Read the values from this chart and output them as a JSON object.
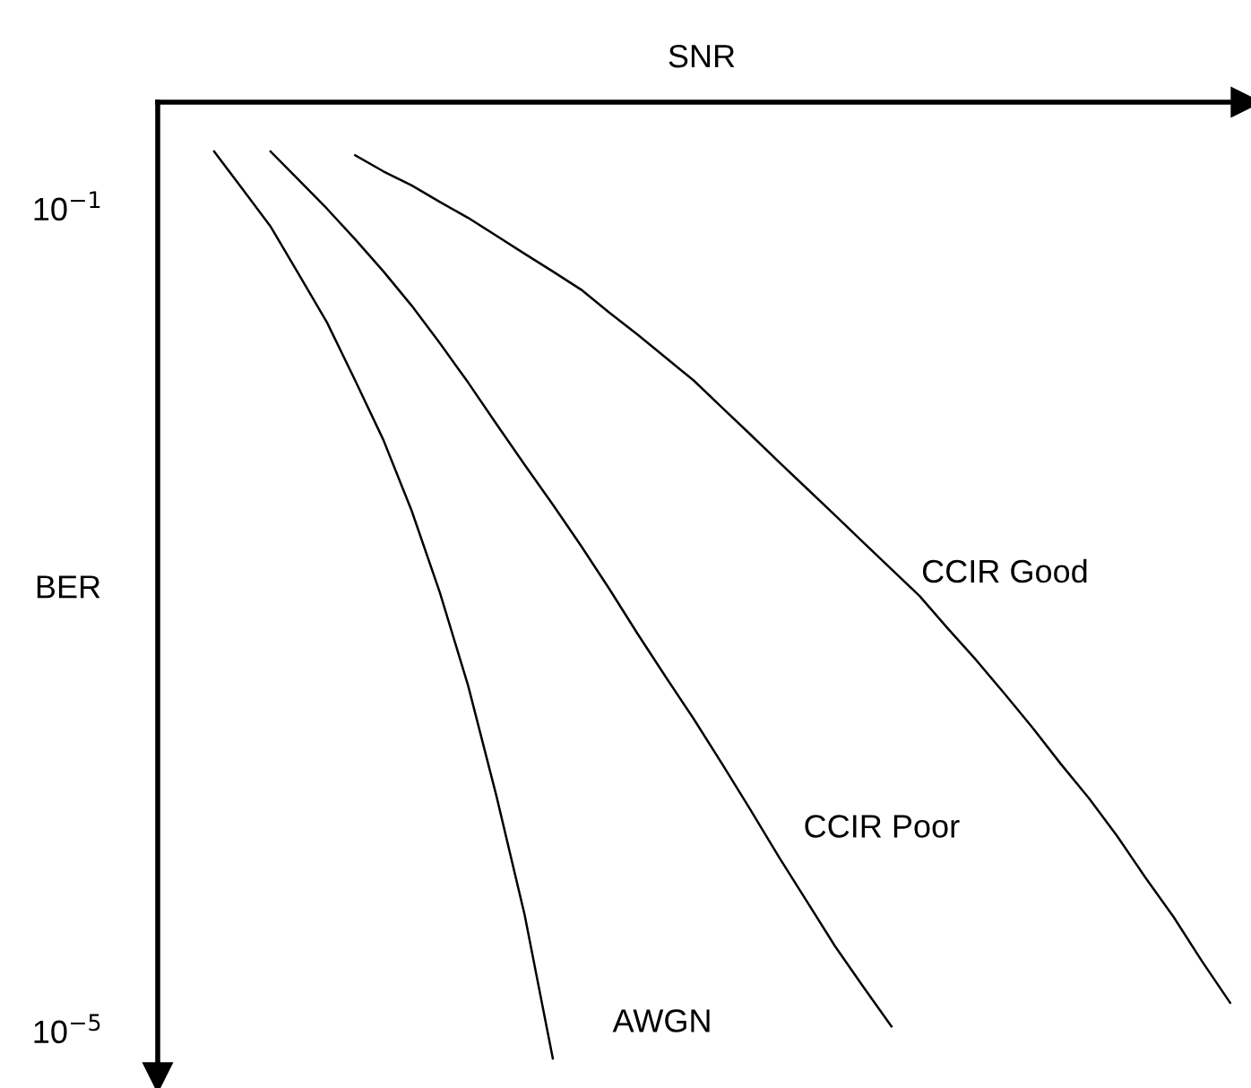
{
  "chart_data": {
    "type": "line",
    "xlabel": "SNR",
    "ylabel": "BER",
    "log": "y",
    "ylim": [
      6e-06,
      0.33
    ],
    "yticks": [
      {
        "value": 0.1,
        "label": "10$^{−1}$"
      },
      {
        "value": 1e-05,
        "label": "10$^{−5}$"
      }
    ],
    "tick_labels": "y",
    "grid": false,
    "legend": false,
    "marker": "none",
    "line_style": "solid",
    "categories": [
      null,
      null,
      null,
      null,
      null,
      null,
      null,
      null,
      null,
      null,
      null,
      null,
      null,
      null,
      null,
      null,
      null,
      null,
      null,
      null,
      null,
      null,
      null,
      null,
      null,
      null,
      null,
      null,
      null,
      null,
      null,
      null,
      null,
      null,
      null,
      null,
      null
    ],
    "series": [
      {
        "name": "AWGN",
        "color": "#000000",
        "values": [
          0.19,
          0.125,
          0.082,
          0.048,
          0.028,
          0.0146,
          0.0075,
          0.0034,
          0.00136,
          0.00048,
          0.00014,
          3.7e-05,
          7.4e-06,
          null,
          null,
          null,
          null,
          null,
          null,
          null,
          null,
          null,
          null,
          null,
          null,
          null,
          null,
          null,
          null,
          null,
          null,
          null,
          null,
          null,
          null,
          null,
          null
        ]
      },
      {
        "name": "CCIR Poor",
        "color": "#000000",
        "values": [
          null,
          null,
          0.19,
          0.138,
          0.1,
          0.071,
          0.0496,
          0.0338,
          0.0222,
          0.0143,
          0.009,
          0.0057,
          0.00365,
          0.0023,
          0.00142,
          0.00086,
          0.00053,
          0.00033,
          0.0002,
          0.00012,
          7.1e-05,
          4.3e-05,
          2.6e-05,
          1.65e-05,
          1.06e-05,
          null,
          null,
          null,
          null,
          null,
          null,
          null,
          null,
          null,
          null,
          null,
          null
        ]
      },
      {
        "name": "CCIR Good",
        "color": "#000000",
        "values": [
          null,
          null,
          null,
          null,
          null,
          0.182,
          0.152,
          0.13,
          0.108,
          0.0904,
          0.074,
          0.0605,
          0.0496,
          0.0405,
          0.0313,
          0.0245,
          0.0189,
          0.0146,
          0.0108,
          0.008,
          0.0059,
          0.00437,
          0.00324,
          0.00239,
          0.00177,
          0.00131,
          0.00091,
          0.00064,
          0.00044,
          0.0003,
          0.0002,
          0.000136,
          8.9e-05,
          5.6e-05,
          3.6e-05,
          2.2e-05,
          1.38e-05
        ]
      }
    ]
  }
}
